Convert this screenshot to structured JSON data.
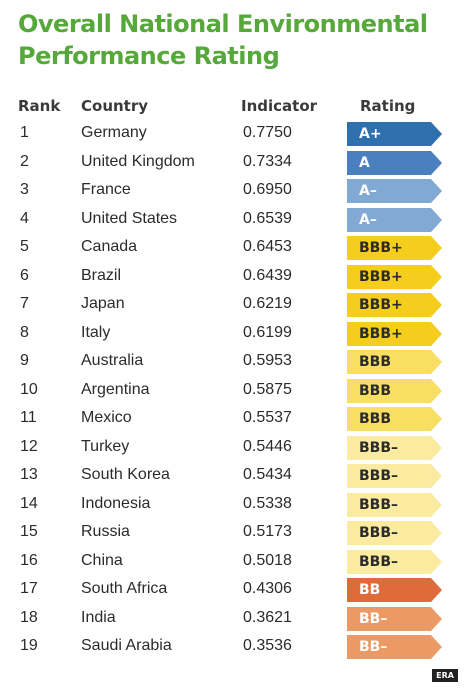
{
  "title_line1": "Overall National Environmental",
  "title_line2": "Performance Rating",
  "credit": "ERA",
  "colors": {
    "title": "#56a83b",
    "A+": "#2e6fad",
    "A": "#4a80bf",
    "A-": "#82a8d4",
    "BBB+": "#f5cd1c",
    "BBB": "#f8de62",
    "BBB-": "#fbeba0",
    "BB": "#e06b3a",
    "BB-": "#eb9a66"
  },
  "chart_data": {
    "type": "table",
    "columns": [
      "Rank",
      "Country",
      "Indicator",
      "Rating"
    ],
    "rows": [
      {
        "rank": "1",
        "country": "Germany",
        "indicator": "0.7750",
        "rating": "A+"
      },
      {
        "rank": "2",
        "country": "United Kingdom",
        "indicator": "0.7334",
        "rating": "A"
      },
      {
        "rank": "3",
        "country": "France",
        "indicator": "0.6950",
        "rating": "A–"
      },
      {
        "rank": "4",
        "country": "United States",
        "indicator": "0.6539",
        "rating": "A–"
      },
      {
        "rank": "5",
        "country": "Canada",
        "indicator": "0.6453",
        "rating": "BBB+"
      },
      {
        "rank": "6",
        "country": "Brazil",
        "indicator": "0.6439",
        "rating": "BBB+"
      },
      {
        "rank": "7",
        "country": "Japan",
        "indicator": "0.6219",
        "rating": "BBB+"
      },
      {
        "rank": "8",
        "country": "Italy",
        "indicator": "0.6199",
        "rating": "BBB+"
      },
      {
        "rank": "9",
        "country": "Australia",
        "indicator": "0.5953",
        "rating": "BBB"
      },
      {
        "rank": "10",
        "country": "Argentina",
        "indicator": "0.5875",
        "rating": "BBB"
      },
      {
        "rank": "11",
        "country": "Mexico",
        "indicator": "0.5537",
        "rating": "BBB"
      },
      {
        "rank": "12",
        "country": "Turkey",
        "indicator": "0.5446",
        "rating": "BBB–"
      },
      {
        "rank": "13",
        "country": "South Korea",
        "indicator": "0.5434",
        "rating": "BBB–"
      },
      {
        "rank": "14",
        "country": "Indonesia",
        "indicator": "0.5338",
        "rating": "BBB–"
      },
      {
        "rank": "15",
        "country": "Russia",
        "indicator": "0.5173",
        "rating": "BBB–"
      },
      {
        "rank": "16",
        "country": "China",
        "indicator": "0.5018",
        "rating": "BBB–"
      },
      {
        "rank": "17",
        "country": "South Africa",
        "indicator": "0.4306",
        "rating": "BB"
      },
      {
        "rank": "18",
        "country": "India",
        "indicator": "0.3621",
        "rating": "BB–"
      },
      {
        "rank": "19",
        "country": "Saudi Arabia",
        "indicator": "0.3536",
        "rating": "BB–"
      }
    ]
  }
}
